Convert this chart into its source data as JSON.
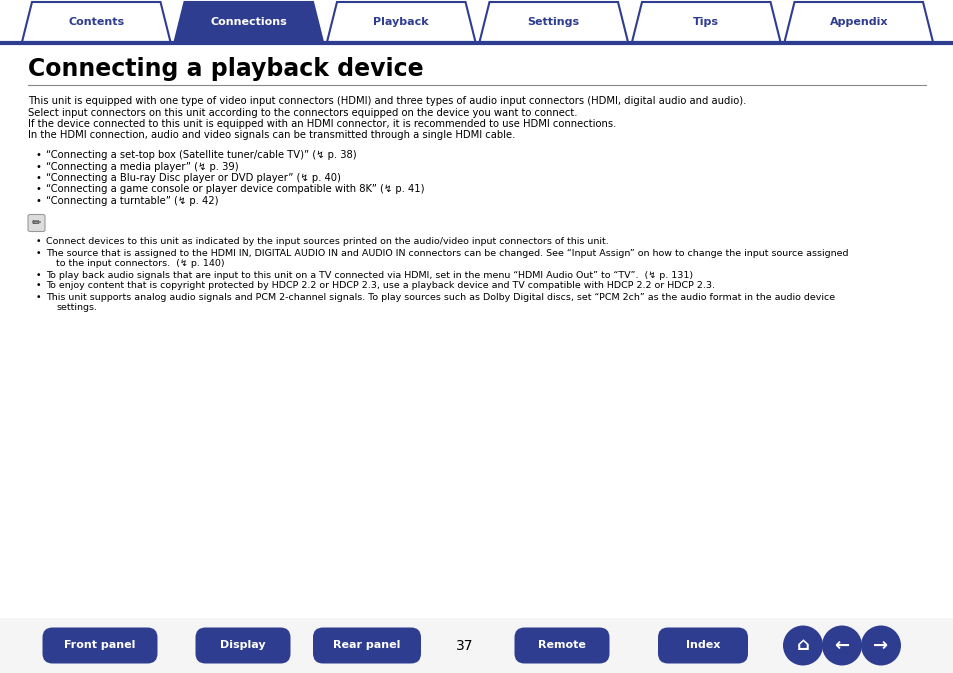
{
  "bg_color": "#ffffff",
  "tab_color_active": "#2e3d8f",
  "tab_color_inactive": "#ffffff",
  "tab_border_color": "#2e3d8f",
  "tab_text_active": "#ffffff",
  "tab_text_inactive": "#2e3d8f",
  "tabs": [
    "Contents",
    "Connections",
    "Playback",
    "Settings",
    "Tips",
    "Appendix"
  ],
  "active_tab": 1,
  "title": "Connecting a playback device",
  "title_color": "#000000",
  "rule_color": "#444444",
  "body_color": "#000000",
  "intro_lines": [
    "This unit is equipped with one type of video input connectors (HDMI) and three types of audio input connectors (HDMI, digital audio and audio).",
    "Select input connectors on this unit according to the connectors equipped on the device you want to connect.",
    "If the device connected to this unit is equipped with an HDMI connector, it is recommended to use HDMI connections.",
    "In the HDMI connection, audio and video signals can be transmitted through a single HDMI cable."
  ],
  "bullet_items": [
    "“Connecting a set-top box (Satellite tuner/cable TV)” (↯ p. 38)",
    "“Connecting a media player” (↯ p. 39)",
    "“Connecting a Blu-ray Disc player or DVD player” (↯ p. 40)",
    "“Connecting a game console or player device compatible with 8K” (↯ p. 41)",
    "“Connecting a turntable” (↯ p. 42)"
  ],
  "note_bullet_line1": "Connect devices to this unit as indicated by the input sources printed on the audio/video input connectors of this unit.",
  "note_bullet_line2a": "The source that is assigned to the HDMI IN, DIGITAL AUDIO IN and AUDIO IN connectors can be changed. See “Input Assign” on how to change the input source assigned",
  "note_bullet_line2b": "to the input connectors.  (↯ p. 140)",
  "note_bullet_line3": "To play back audio signals that are input to this unit on a TV connected via HDMI, set in the menu “HDMI Audio Out” to “TV”.  (↯ p. 131)",
  "note_bullet_line4": "To enjoy content that is copyright protected by HDCP 2.2 or HDCP 2.3, use a playback device and TV compatible with HDCP 2.2 or HDCP 2.3.",
  "note_bullet_line5a": "This unit supports analog audio signals and PCM 2-channel signals. To play sources such as Dolby Digital discs, set “PCM 2ch” as the audio format in the audio device",
  "note_bullet_line5b": "settings.",
  "bottom_buttons": [
    "Front panel",
    "Display",
    "Rear panel",
    "Remote",
    "Index"
  ],
  "page_number": "37",
  "btn_color_dark": "#2e3d8f",
  "btn_text_color": "#ffffff",
  "footer_bg": "#f5f5f5"
}
